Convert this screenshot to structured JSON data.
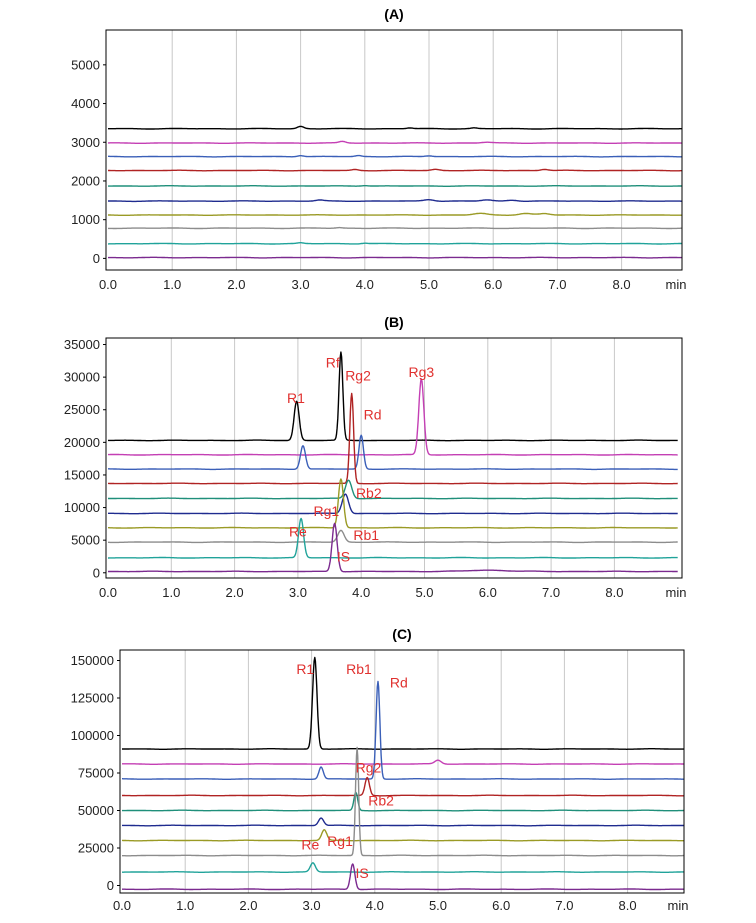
{
  "colors": {
    "black": "#000000",
    "magenta": "#c43fb4",
    "blue": "#3a5fb8",
    "darkred": "#b02323",
    "teal": "#1f8f7a",
    "navy": "#1f2b8f",
    "olive": "#9a9a25",
    "gray": "#8c8c8c",
    "cyan": "#20a39a",
    "purple": "#7b2a8f",
    "label": "#e0312f"
  },
  "chart_data": [
    {
      "type": "line",
      "title": "(A)",
      "xlabel": "min",
      "xlim": [
        0,
        9.0
      ],
      "ylim": [
        -300,
        5900
      ],
      "xticks": [
        "0.0",
        "1.0",
        "2.0",
        "3.0",
        "4.0",
        "5.0",
        "6.0",
        "7.0",
        "8.0"
      ],
      "yticks": [
        "0",
        "1000",
        "2000",
        "3000",
        "4000",
        "5000"
      ],
      "ytick_values": [
        0,
        1000,
        2000,
        3000,
        4000,
        5000
      ],
      "grid": true,
      "series": [
        {
          "color": "black",
          "baseline": 3350,
          "peaks": [
            [
              3.0,
              60,
              0.05
            ],
            [
              4.7,
              20,
              0.05
            ],
            [
              5.7,
              20,
              0.05
            ]
          ]
        },
        {
          "color": "magenta",
          "baseline": 2980,
          "peaks": [
            [
              3.65,
              40,
              0.05
            ],
            [
              5.9,
              20,
              0.08
            ]
          ]
        },
        {
          "color": "blue",
          "baseline": 2630,
          "peaks": [
            [
              3.0,
              30,
              0.05
            ],
            [
              3.9,
              25,
              0.05
            ],
            [
              5.0,
              20,
              0.06
            ]
          ]
        },
        {
          "color": "darkred",
          "baseline": 2270,
          "peaks": [
            [
              3.85,
              25,
              0.05
            ],
            [
              5.1,
              30,
              0.06
            ],
            [
              6.8,
              30,
              0.06
            ]
          ]
        },
        {
          "color": "teal",
          "baseline": 1870,
          "peaks": [
            [
              4.0,
              15,
              0.06
            ]
          ]
        },
        {
          "color": "navy",
          "baseline": 1480,
          "peaks": [
            [
              3.3,
              25,
              0.06
            ],
            [
              5.0,
              40,
              0.08
            ],
            [
              5.9,
              30,
              0.08
            ],
            [
              6.3,
              25,
              0.08
            ]
          ]
        },
        {
          "color": "olive",
          "baseline": 1120,
          "peaks": [
            [
              5.8,
              40,
              0.1
            ],
            [
              6.5,
              40,
              0.1
            ],
            [
              6.8,
              35,
              0.08
            ]
          ]
        },
        {
          "color": "gray",
          "baseline": 780,
          "peaks": [
            [
              3.6,
              15,
              0.05
            ]
          ]
        },
        {
          "color": "cyan",
          "baseline": 380,
          "peaks": [
            [
              3.0,
              20,
              0.05
            ],
            [
              4.0,
              15,
              0.05
            ]
          ]
        },
        {
          "color": "purple",
          "baseline": 20,
          "peaks": []
        }
      ],
      "annotations": []
    },
    {
      "type": "line",
      "title": "(B)",
      "xlabel": "min",
      "xlim": [
        0,
        9.0
      ],
      "ylim": [
        -800,
        36000
      ],
      "xticks": [
        "0.0",
        "1.0",
        "2.0",
        "3.0",
        "4.0",
        "5.0",
        "6.0",
        "7.0",
        "8.0"
      ],
      "yticks": [
        "0",
        "5000",
        "10000",
        "15000",
        "20000",
        "25000",
        "30000",
        "35000"
      ],
      "ytick_values": [
        0,
        5000,
        10000,
        15000,
        20000,
        25000,
        30000,
        35000
      ],
      "grid": true,
      "series": [
        {
          "color": "black",
          "baseline": 20300,
          "peaks": [
            [
              2.98,
              6000,
              0.04
            ],
            [
              3.68,
              13500,
              0.03
            ]
          ]
        },
        {
          "color": "magenta",
          "baseline": 18100,
          "peaks": [
            [
              4.95,
              11600,
              0.04
            ]
          ]
        },
        {
          "color": "blue",
          "baseline": 15900,
          "peaks": [
            [
              3.08,
              3600,
              0.04
            ],
            [
              4.0,
              5200,
              0.035
            ]
          ]
        },
        {
          "color": "darkred",
          "baseline": 13700,
          "peaks": [
            [
              3.85,
              13800,
              0.03
            ]
          ]
        },
        {
          "color": "teal",
          "baseline": 11400,
          "peaks": [
            [
              3.8,
              2800,
              0.05
            ]
          ]
        },
        {
          "color": "navy",
          "baseline": 9100,
          "peaks": [
            [
              3.75,
              3000,
              0.05
            ]
          ]
        },
        {
          "color": "olive",
          "baseline": 6900,
          "peaks": [
            [
              3.68,
              7500,
              0.04
            ]
          ]
        },
        {
          "color": "gray",
          "baseline": 4700,
          "peaks": [
            [
              3.68,
              1800,
              0.05
            ]
          ]
        },
        {
          "color": "cyan",
          "baseline": 2300,
          "peaks": [
            [
              3.05,
              6000,
              0.04
            ]
          ]
        },
        {
          "color": "purple",
          "baseline": 200,
          "peaks": [
            [
              3.58,
              7400,
              0.04
            ],
            [
              6.0,
              200,
              0.3
            ]
          ]
        }
      ],
      "annotations": [
        {
          "text": "R1",
          "x": 2.97,
          "y": 26000
        },
        {
          "text": "Rf",
          "x": 3.55,
          "y": 31500
        },
        {
          "text": "Rg2",
          "x": 3.95,
          "y": 29500
        },
        {
          "text": "Rd",
          "x": 4.18,
          "y": 23500
        },
        {
          "text": "Rg3",
          "x": 4.95,
          "y": 30000
        },
        {
          "text": "Rb2",
          "x": 4.12,
          "y": 11500
        },
        {
          "text": "Rg1",
          "x": 3.45,
          "y": 8700
        },
        {
          "text": "Rb1",
          "x": 4.08,
          "y": 5000
        },
        {
          "text": "Re",
          "x": 3.0,
          "y": 5600
        },
        {
          "text": "IS",
          "x": 3.72,
          "y": 1700
        }
      ]
    },
    {
      "type": "line",
      "title": "(C)",
      "xlabel": "min",
      "xlim": [
        0,
        9.0
      ],
      "ylim": [
        -5000,
        157000
      ],
      "xticks": [
        "0.0",
        "1.0",
        "2.0",
        "3.0",
        "4.0",
        "5.0",
        "6.0",
        "7.0",
        "8.0"
      ],
      "yticks": [
        "0",
        "25000",
        "50000",
        "75000",
        "100000",
        "125000",
        "150000"
      ],
      "ytick_values": [
        0,
        25000,
        50000,
        75000,
        100000,
        125000,
        150000
      ],
      "grid": true,
      "series": [
        {
          "color": "black",
          "baseline": 91000,
          "peaks": [
            [
              3.05,
              61000,
              0.035
            ]
          ]
        },
        {
          "color": "magenta",
          "baseline": 81000,
          "peaks": [
            [
              5.0,
              2500,
              0.05
            ]
          ]
        },
        {
          "color": "blue",
          "baseline": 71000,
          "peaks": [
            [
              3.15,
              8000,
              0.035
            ],
            [
              4.05,
              65000,
              0.03
            ]
          ]
        },
        {
          "color": "darkred",
          "baseline": 60000,
          "peaks": [
            [
              3.88,
              12000,
              0.035
            ]
          ]
        },
        {
          "color": "teal",
          "baseline": 50000,
          "peaks": [
            [
              3.7,
              12000,
              0.03
            ]
          ]
        },
        {
          "color": "navy",
          "baseline": 40000,
          "peaks": [
            [
              3.15,
              5000,
              0.04
            ]
          ]
        },
        {
          "color": "olive",
          "baseline": 30000,
          "peaks": [
            [
              3.2,
              7000,
              0.04
            ]
          ]
        },
        {
          "color": "gray",
          "baseline": 20000,
          "peaks": [
            [
              3.72,
              72000,
              0.025
            ]
          ]
        },
        {
          "color": "cyan",
          "baseline": 9000,
          "peaks": [
            [
              3.02,
              6000,
              0.04
            ]
          ]
        },
        {
          "color": "purple",
          "baseline": -2500,
          "peaks": [
            [
              3.65,
              17000,
              0.035
            ]
          ]
        }
      ],
      "annotations": [
        {
          "text": "R1",
          "x": 2.9,
          "y": 141000
        },
        {
          "text": "Rb1",
          "x": 3.75,
          "y": 141000
        },
        {
          "text": "Rd",
          "x": 4.38,
          "y": 132000
        },
        {
          "text": "Rg2",
          "x": 3.9,
          "y": 75500
        },
        {
          "text": "Rb2",
          "x": 4.1,
          "y": 53500
        },
        {
          "text": "Re",
          "x": 2.98,
          "y": 24000
        },
        {
          "text": "Rg1",
          "x": 3.45,
          "y": 26500
        },
        {
          "text": "IS",
          "x": 3.8,
          "y": 5000
        }
      ]
    }
  ]
}
